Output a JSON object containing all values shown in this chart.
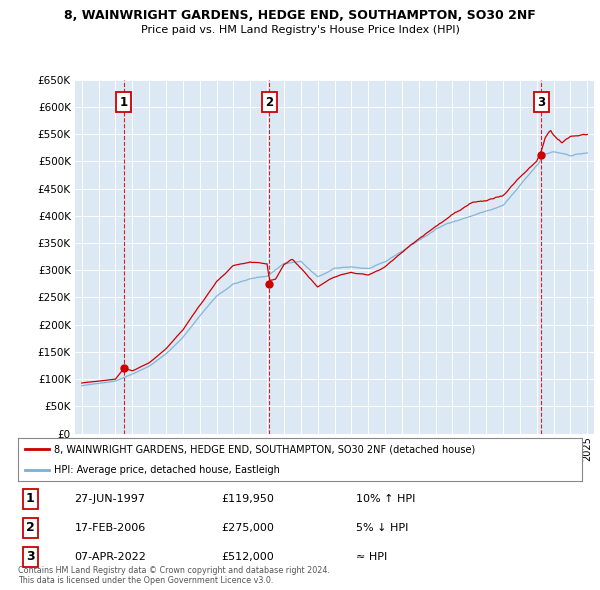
{
  "title": "8, WAINWRIGHT GARDENS, HEDGE END, SOUTHAMPTON, SO30 2NF",
  "subtitle": "Price paid vs. HM Land Registry's House Price Index (HPI)",
  "ylim": [
    0,
    650000
  ],
  "yticks": [
    0,
    50000,
    100000,
    150000,
    200000,
    250000,
    300000,
    350000,
    400000,
    450000,
    500000,
    550000,
    600000,
    650000
  ],
  "sale_color": "#cc0000",
  "hpi_color": "#7bafd4",
  "bg_color": "#dce9f5",
  "grid_color": "#ffffff",
  "sales": [
    {
      "date_num": 1997.49,
      "price": 119950,
      "label": "1"
    },
    {
      "date_num": 2006.13,
      "price": 275000,
      "label": "2"
    },
    {
      "date_num": 2022.27,
      "price": 512000,
      "label": "3"
    }
  ],
  "vline_dates": [
    1997.49,
    2006.13,
    2022.27
  ],
  "legend_sale_label": "8, WAINWRIGHT GARDENS, HEDGE END, SOUTHAMPTON, SO30 2NF (detached house)",
  "legend_hpi_label": "HPI: Average price, detached house, Eastleigh",
  "table": [
    {
      "num": "1",
      "date": "27-JUN-1997",
      "price": "£119,950",
      "note": "10% ↑ HPI"
    },
    {
      "num": "2",
      "date": "17-FEB-2006",
      "price": "£275,000",
      "note": "5% ↓ HPI"
    },
    {
      "num": "3",
      "date": "07-APR-2022",
      "price": "£512,000",
      "note": "≈ HPI"
    }
  ],
  "footer": "Contains HM Land Registry data © Crown copyright and database right 2024.\nThis data is licensed under the Open Government Licence v3.0."
}
